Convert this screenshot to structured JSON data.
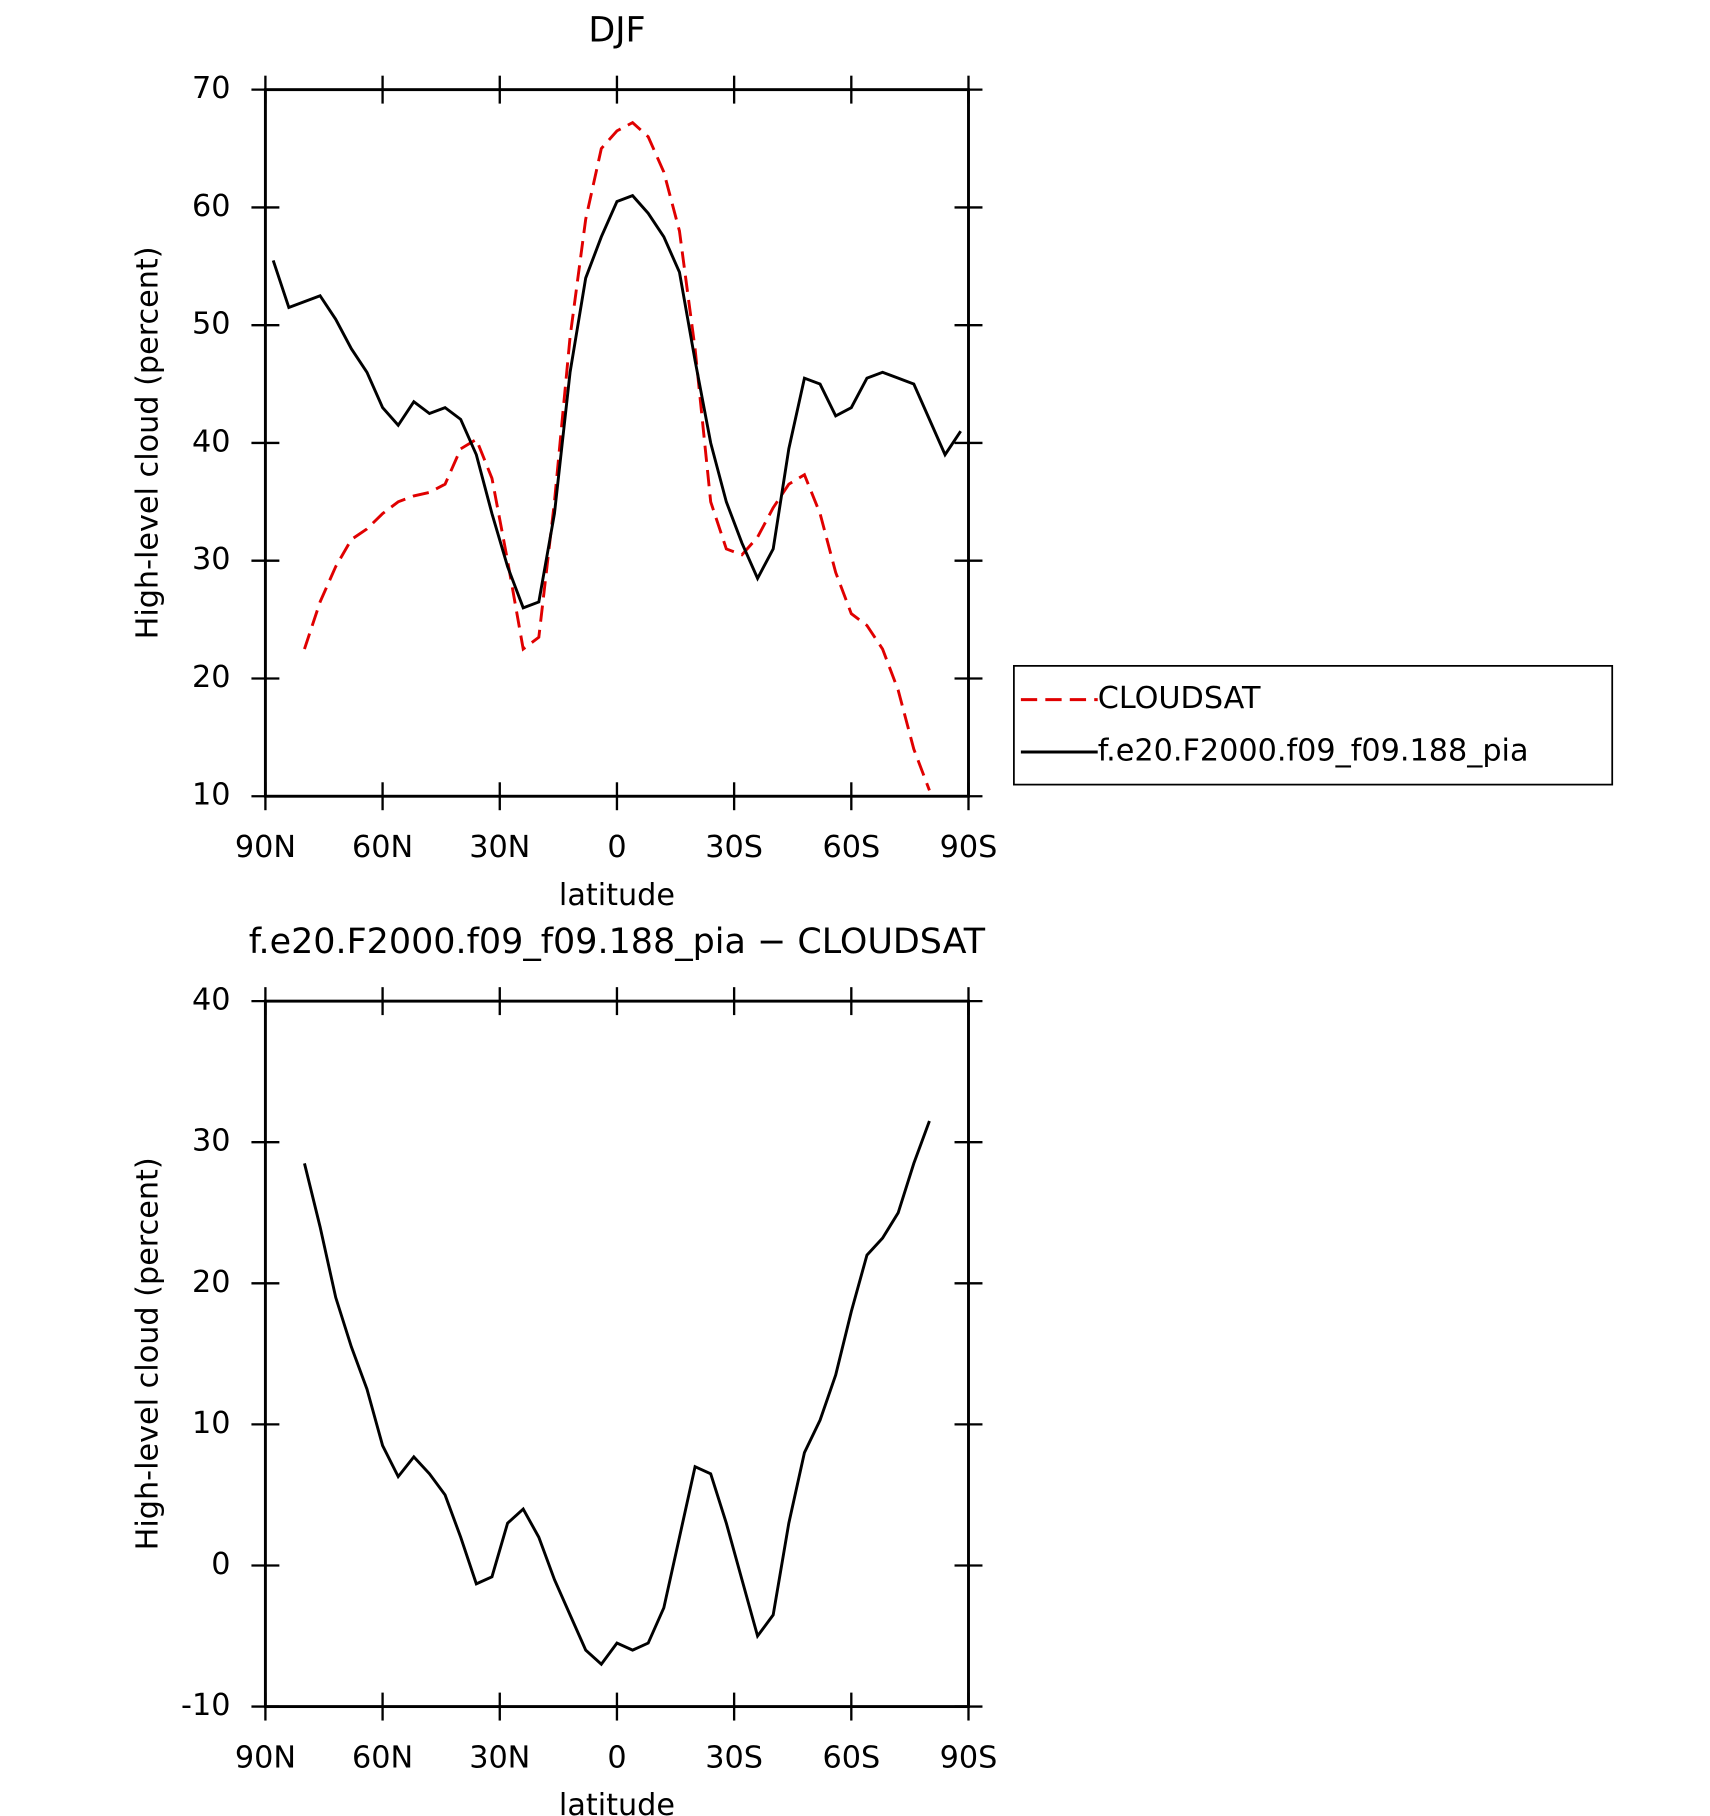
{
  "chart_data": [
    {
      "type": "line",
      "title": "DJF",
      "xlabel": "latitude",
      "ylabel": "High-level cloud (percent)",
      "xlim": [
        90,
        -90
      ],
      "xticks": [
        {
          "value": 90,
          "label": "90N"
        },
        {
          "value": 60,
          "label": "60N"
        },
        {
          "value": 30,
          "label": "30N"
        },
        0,
        {
          "value": -30,
          "label": "30S"
        },
        {
          "value": -60,
          "label": "60S"
        },
        {
          "value": -90,
          "label": "90S"
        }
      ],
      "ylim": [
        10,
        70
      ],
      "yticks": [
        10,
        20,
        30,
        40,
        50,
        60,
        70
      ],
      "legend": "outside-right",
      "x": [
        88,
        84,
        80,
        76,
        72,
        68,
        64,
        60,
        56,
        52,
        48,
        44,
        40,
        36,
        32,
        28,
        24,
        20,
        16,
        12,
        8,
        4,
        0,
        -4,
        -8,
        -12,
        -16,
        -20,
        -24,
        -28,
        -32,
        -36,
        -40,
        -44,
        -48,
        -52,
        -56,
        -60,
        -64,
        -68,
        -72,
        -76,
        -80,
        -84,
        -88
      ],
      "series": [
        {
          "name": "CLOUDSAT",
          "color": "#e00000",
          "dash": true,
          "values": [
            null,
            null,
            22.5,
            26.5,
            29.5,
            31.8,
            32.7,
            34,
            35,
            35.5,
            35.8,
            36.5,
            39.5,
            40.3,
            37,
            30,
            22.5,
            23.5,
            35,
            49,
            59,
            65,
            66.5,
            67.2,
            66,
            63,
            58,
            48,
            35,
            31,
            30.5,
            32,
            34.5,
            36.5,
            37.3,
            34,
            29,
            25.5,
            24.5,
            22.5,
            19,
            14,
            10.5,
            null,
            null
          ]
        },
        {
          "name": "f.e20.F2000.f09_f09.188_pia",
          "color": "#000000",
          "dash": false,
          "values": [
            55.5,
            51.5,
            52,
            52.5,
            50.5,
            48,
            46,
            43,
            41.5,
            43.5,
            42.5,
            43,
            42,
            39,
            34,
            29.5,
            26,
            26.5,
            34,
            46,
            54,
            57.5,
            60.5,
            61,
            59.5,
            57.5,
            54.5,
            47,
            40,
            35,
            31.5,
            28.5,
            31,
            39.5,
            45.5,
            45,
            42.3,
            43,
            45.5,
            46,
            45.5,
            45,
            42,
            39,
            41
          ]
        }
      ]
    },
    {
      "type": "line",
      "title": "f.e20.F2000.f09_f09.188_pia − CLOUDSAT",
      "xlabel": "latitude",
      "ylabel": "High-level cloud (percent)",
      "xlim": [
        90,
        -90
      ],
      "xticks": [
        {
          "value": 90,
          "label": "90N"
        },
        {
          "value": 60,
          "label": "60N"
        },
        {
          "value": 30,
          "label": "30N"
        },
        0,
        {
          "value": -30,
          "label": "30S"
        },
        {
          "value": -60,
          "label": "60S"
        },
        {
          "value": -90,
          "label": "90S"
        }
      ],
      "ylim": [
        -10,
        40
      ],
      "yticks": [
        -10,
        0,
        10,
        20,
        30,
        40
      ],
      "x": [
        80,
        76,
        72,
        68,
        64,
        60,
        56,
        52,
        48,
        44,
        40,
        36,
        32,
        28,
        24,
        20,
        16,
        12,
        8,
        4,
        0,
        -4,
        -8,
        -12,
        -16,
        -20,
        -24,
        -28,
        -32,
        -36,
        -40,
        -44,
        -48,
        -52,
        -56,
        -60,
        -64,
        -68,
        -72,
        -76,
        -80
      ],
      "series": [
        {
          "color": "#000000",
          "dash": false,
          "values": [
            28.5,
            24,
            19,
            15.5,
            12.5,
            8.5,
            6.3,
            7.7,
            6.5,
            5,
            2,
            -1.3,
            -0.8,
            3,
            4,
            2,
            -1,
            -3.5,
            -6,
            -7,
            -5.5,
            -6,
            -5.5,
            -3,
            2,
            7,
            6.5,
            3,
            -1,
            -5,
            -3.5,
            3,
            8,
            10.3,
            13.5,
            18,
            22,
            23.2,
            25,
            28.5,
            31.5
          ]
        }
      ]
    }
  ]
}
